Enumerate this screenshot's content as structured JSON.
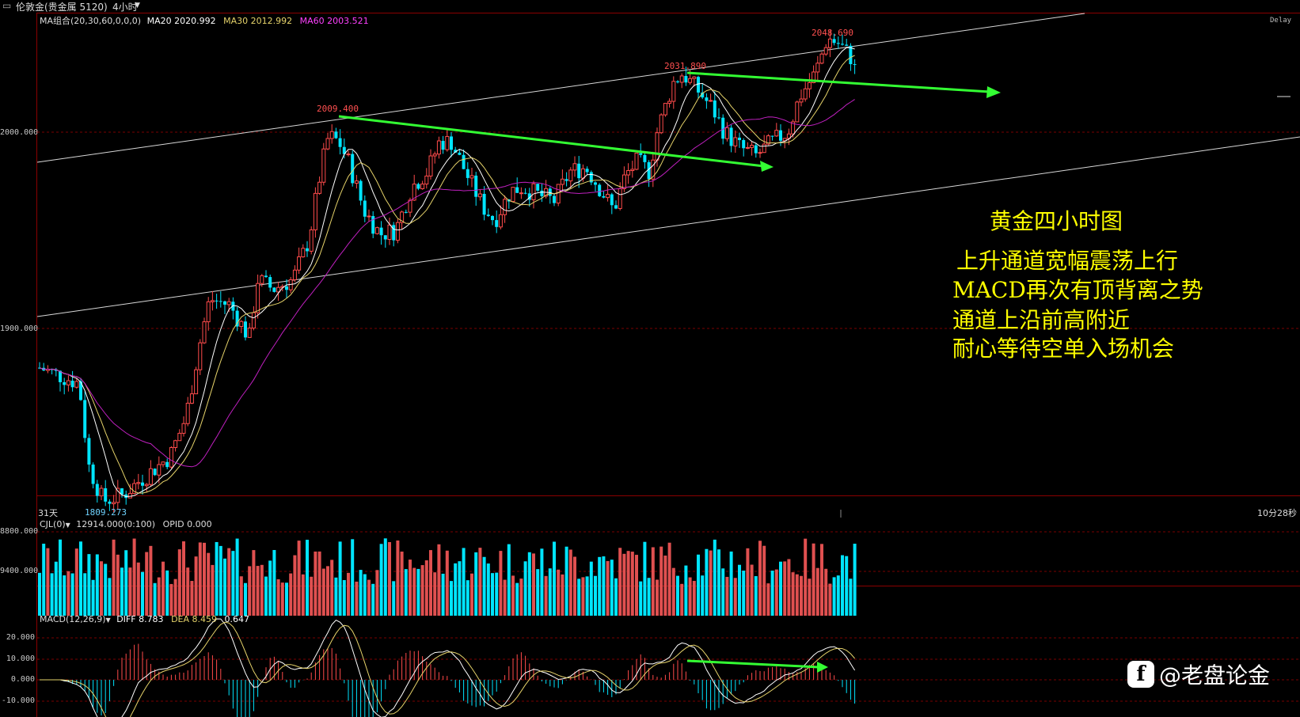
{
  "topbar": {
    "instrument": "伦敦金(贵金属 5120)",
    "period": "4小时",
    "delay": "Delay"
  },
  "main_panel": {
    "ma_legend": {
      "group": "MA组合(20,30,60,0,0,0)",
      "ma20": "MA20 2020.992",
      "ma30": "MA30 2012.992",
      "ma60": "MA60 2003.521"
    },
    "y_ticks": [
      "2000.000",
      "1900.000"
    ],
    "price_labels": {
      "high1": "2009.400",
      "high2": "2031.890",
      "high3": "2048.690",
      "low": "1809.273"
    },
    "bottom_left": "31天",
    "bottom_right": "10分28秒"
  },
  "volume_panel": {
    "legend_name": "CJL(0)",
    "legend_value": "12914.000(0:100)",
    "legend_opid": "OPID 0.000",
    "y_ticks": [
      "8800.000",
      "9400.000"
    ]
  },
  "macd_panel": {
    "legend_name": "MACD(12,26,9)",
    "diff": "DIFF 8.783",
    "dea": "DEA 8.459",
    "macd": "0.647",
    "y_ticks": [
      "20.000",
      "10.000",
      "0.000",
      "-10.000"
    ]
  },
  "annotation": {
    "title": "黄金四小时图",
    "line1": "上升通道宽幅震荡上行",
    "line2": "MACD再次有顶背离之势",
    "line3": "通道上沿前高附近",
    "line4": "耐心等待空单入场机会"
  },
  "watermark": {
    "text": "@老盘论金",
    "icon": "f"
  },
  "colors": {
    "up": "#ff4b4b",
    "down": "#00e5ff",
    "ma20": "#ffffff",
    "ma30": "#e6d36a",
    "ma60": "#c020c0",
    "arrow": "#33ff33",
    "annotation": "#ffff00",
    "grid": "#8b0000"
  },
  "chart_data": {
    "type": "candlestick",
    "title": "伦敦金(贵金属 5120) 4小时",
    "y_ticks": [
      1900,
      2000
    ],
    "marked_prices": {
      "high_1": 2009.4,
      "high_2": 2031.89,
      "high_3": 2048.69,
      "low": 1809.273
    },
    "ma": {
      "MA20": 2020.992,
      "MA30": 2012.992,
      "MA60": 2003.521
    },
    "volume_ticks": [
      8800,
      9400
    ],
    "macd": {
      "DIFF": 8.783,
      "DEA": 8.459,
      "MACD": 0.647
    },
    "macd_ticks": [
      20,
      10,
      0,
      -10
    ]
  }
}
